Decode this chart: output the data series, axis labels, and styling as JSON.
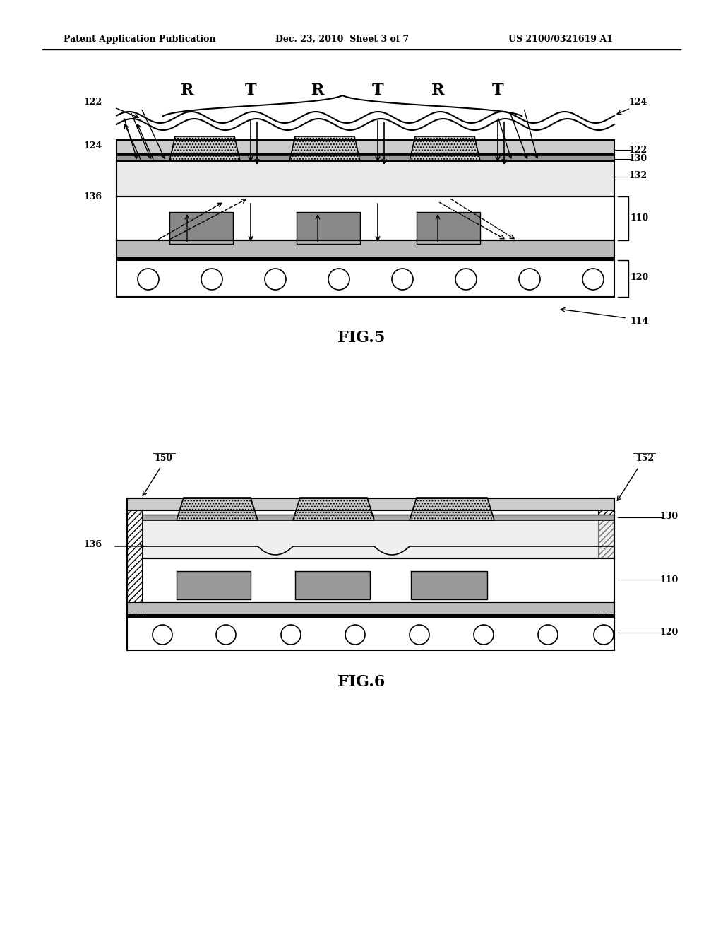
{
  "bg_color": "#ffffff",
  "header_left": "Patent Application Publication",
  "header_center": "Dec. 23, 2010  Sheet 3 of 7",
  "header_right": "US 2100/0321619 A1",
  "fig5_label": "FIG.5",
  "fig6_label": "FIG.6"
}
